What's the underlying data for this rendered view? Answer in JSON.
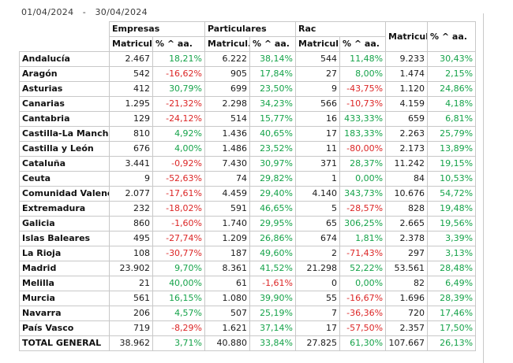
{
  "header": {
    "date_from": "01/04/2024",
    "separator": "-",
    "date_to": "30/04/2024"
  },
  "groups": {
    "empresas": "Empresas",
    "particulares": "Particulares",
    "rac": "Rac"
  },
  "subheaders": {
    "matricul": "Matricul.",
    "pct": "% ^ aa."
  },
  "colors": {
    "positive": "#16a34a",
    "negative": "#dc2626"
  },
  "rows": [
    {
      "region": "Andalucía",
      "emp_m": "2.467",
      "emp_p": "18,21%",
      "par_m": "6.222",
      "par_p": "38,14%",
      "rac_m": "544",
      "rac_p": "11,48%",
      "tot_m": "9.233",
      "tot_p": "30,43%"
    },
    {
      "region": "Aragón",
      "emp_m": "542",
      "emp_p": "-16,62%",
      "par_m": "905",
      "par_p": "17,84%",
      "rac_m": "27",
      "rac_p": "8,00%",
      "tot_m": "1.474",
      "tot_p": "2,15%"
    },
    {
      "region": "Asturias",
      "emp_m": "412",
      "emp_p": "30,79%",
      "par_m": "699",
      "par_p": "23,50%",
      "rac_m": "9",
      "rac_p": "-43,75%",
      "tot_m": "1.120",
      "tot_p": "24,86%"
    },
    {
      "region": "Canarias",
      "emp_m": "1.295",
      "emp_p": "-21,32%",
      "par_m": "2.298",
      "par_p": "34,23%",
      "rac_m": "566",
      "rac_p": "-10,73%",
      "tot_m": "4.159",
      "tot_p": "4,18%"
    },
    {
      "region": "Cantabria",
      "emp_m": "129",
      "emp_p": "-24,12%",
      "par_m": "514",
      "par_p": "15,77%",
      "rac_m": "16",
      "rac_p": "433,33%",
      "tot_m": "659",
      "tot_p": "6,81%"
    },
    {
      "region": "Castilla-La Mancha",
      "emp_m": "810",
      "emp_p": "4,92%",
      "par_m": "1.436",
      "par_p": "40,65%",
      "rac_m": "17",
      "rac_p": "183,33%",
      "tot_m": "2.263",
      "tot_p": "25,79%"
    },
    {
      "region": "Castilla y León",
      "emp_m": "676",
      "emp_p": "4,00%",
      "par_m": "1.486",
      "par_p": "23,52%",
      "rac_m": "11",
      "rac_p": "-80,00%",
      "tot_m": "2.173",
      "tot_p": "13,89%"
    },
    {
      "region": "Cataluña",
      "emp_m": "3.441",
      "emp_p": "-0,92%",
      "par_m": "7.430",
      "par_p": "30,97%",
      "rac_m": "371",
      "rac_p": "28,37%",
      "tot_m": "11.242",
      "tot_p": "19,15%"
    },
    {
      "region": "Ceuta",
      "emp_m": "9",
      "emp_p": "-52,63%",
      "par_m": "74",
      "par_p": "29,82%",
      "rac_m": "1",
      "rac_p": "0,00%",
      "tot_m": "84",
      "tot_p": "10,53%"
    },
    {
      "region": "Comunidad Valencia",
      "emp_m": "2.077",
      "emp_p": "-17,61%",
      "par_m": "4.459",
      "par_p": "29,40%",
      "rac_m": "4.140",
      "rac_p": "343,73%",
      "tot_m": "10.676",
      "tot_p": "54,72%"
    },
    {
      "region": "Extremadura",
      "emp_m": "232",
      "emp_p": "-18,02%",
      "par_m": "591",
      "par_p": "46,65%",
      "rac_m": "5",
      "rac_p": "-28,57%",
      "tot_m": "828",
      "tot_p": "19,48%"
    },
    {
      "region": "Galicia",
      "emp_m": "860",
      "emp_p": "-1,60%",
      "par_m": "1.740",
      "par_p": "29,95%",
      "rac_m": "65",
      "rac_p": "306,25%",
      "tot_m": "2.665",
      "tot_p": "19,56%"
    },
    {
      "region": "Islas Baleares",
      "emp_m": "495",
      "emp_p": "-27,74%",
      "par_m": "1.209",
      "par_p": "26,86%",
      "rac_m": "674",
      "rac_p": "1,81%",
      "tot_m": "2.378",
      "tot_p": "3,39%"
    },
    {
      "region": "La Rioja",
      "emp_m": "108",
      "emp_p": "-30,77%",
      "par_m": "187",
      "par_p": "49,60%",
      "rac_m": "2",
      "rac_p": "-71,43%",
      "tot_m": "297",
      "tot_p": "3,13%"
    },
    {
      "region": "Madrid",
      "emp_m": "23.902",
      "emp_p": "9,70%",
      "par_m": "8.361",
      "par_p": "41,52%",
      "rac_m": "21.298",
      "rac_p": "52,22%",
      "tot_m": "53.561",
      "tot_p": "28,48%"
    },
    {
      "region": "Melilla",
      "emp_m": "21",
      "emp_p": "40,00%",
      "par_m": "61",
      "par_p": "-1,61%",
      "rac_m": "0",
      "rac_p": "0,00%",
      "tot_m": "82",
      "tot_p": "6,49%"
    },
    {
      "region": "Murcia",
      "emp_m": "561",
      "emp_p": "16,15%",
      "par_m": "1.080",
      "par_p": "39,90%",
      "rac_m": "55",
      "rac_p": "-16,67%",
      "tot_m": "1.696",
      "tot_p": "28,39%"
    },
    {
      "region": "Navarra",
      "emp_m": "206",
      "emp_p": "4,57%",
      "par_m": "507",
      "par_p": "25,19%",
      "rac_m": "7",
      "rac_p": "-36,36%",
      "tot_m": "720",
      "tot_p": "17,46%"
    },
    {
      "region": "País Vasco",
      "emp_m": "719",
      "emp_p": "-8,29%",
      "par_m": "1.621",
      "par_p": "37,14%",
      "rac_m": "17",
      "rac_p": "-57,50%",
      "tot_m": "2.357",
      "tot_p": "17,50%"
    },
    {
      "region": "TOTAL GENERAL",
      "emp_m": "38.962",
      "emp_p": "3,71%",
      "par_m": "40.880",
      "par_p": "33,84%",
      "rac_m": "27.825",
      "rac_p": "61,30%",
      "tot_m": "107.667",
      "tot_p": "26,13%"
    }
  ]
}
